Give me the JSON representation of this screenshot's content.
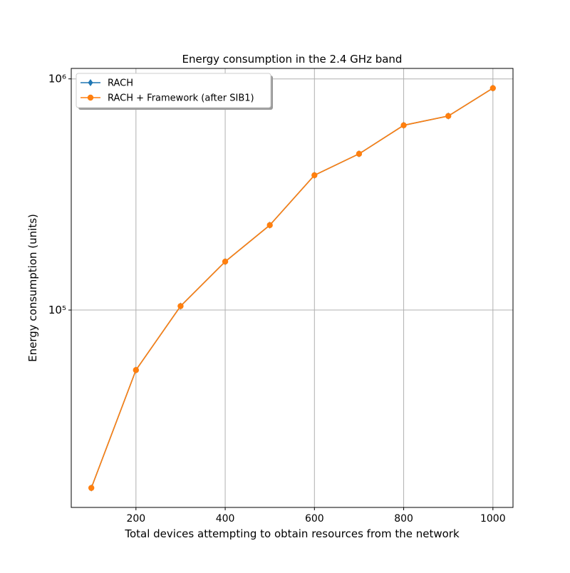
{
  "chart_data": {
    "type": "line",
    "title": "Energy consumption in the 2.4 GHz band",
    "xlabel": "Total devices attempting to obtain resources from the network",
    "ylabel": "Energy consumption (units)",
    "x": [
      100,
      200,
      300,
      400,
      500,
      600,
      700,
      800,
      900,
      1000
    ],
    "series": [
      {
        "name": "RACH",
        "color": "#1f77b4",
        "marker": "diamond",
        "values": [
          17000,
          55000,
          104000,
          162000,
          233000,
          383000,
          474000,
          630000,
          691000,
          912000
        ]
      },
      {
        "name": "RACH + Framework (after SIB1)",
        "color": "#ff7f0e",
        "marker": "circle",
        "values": [
          17000,
          55000,
          104000,
          162000,
          233000,
          383000,
          474000,
          630000,
          691000,
          912000
        ]
      }
    ],
    "xlim": [
      55,
      1045
    ],
    "xticks": [
      200,
      400,
      600,
      800,
      1000
    ],
    "ylim": [
      14000,
      1110000
    ],
    "yscale": "log",
    "yticks": [
      {
        "value": 100000,
        "label": "10⁵"
      },
      {
        "value": 1000000,
        "label": "10⁶"
      }
    ],
    "grid": true,
    "legend": "upper left"
  }
}
